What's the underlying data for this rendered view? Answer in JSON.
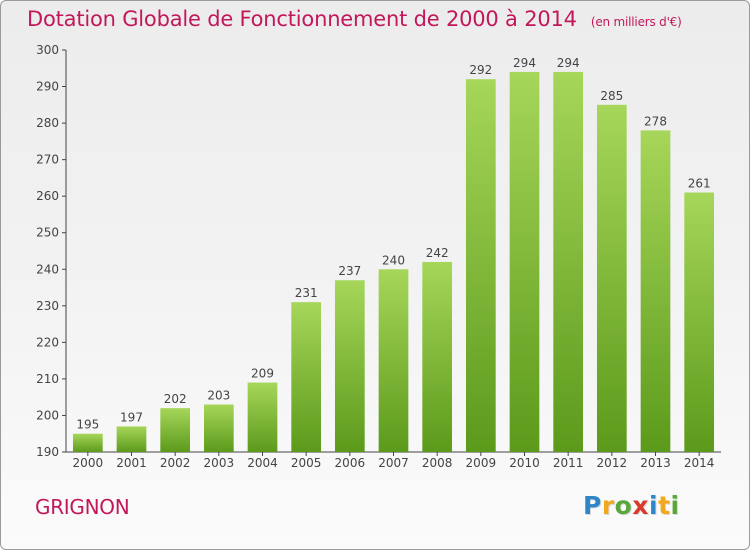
{
  "title": {
    "main": "Dotation Globale de Fonctionnement de 2000 à 2014",
    "unit": "(en milliers d'€)"
  },
  "place": "GRIGNON",
  "logo": {
    "letters": [
      "P",
      "r",
      "o",
      "x",
      "i",
      "t",
      "i"
    ],
    "colors": [
      "#2e86c9",
      "#f2a81d",
      "#5aa83c",
      "#d93a2b",
      "#2e86c9",
      "#f2a81d",
      "#5aa83c"
    ]
  },
  "colors": {
    "bar_top": "#a6d65a",
    "bar_bottom": "#5c9a1b",
    "title": "#c2185b"
  },
  "chart_data": {
    "type": "bar",
    "categories": [
      "2000",
      "2001",
      "2002",
      "2003",
      "2004",
      "2005",
      "2006",
      "2007",
      "2008",
      "2009",
      "2010",
      "2011",
      "2012",
      "2013",
      "2014"
    ],
    "values": [
      195,
      197,
      202,
      203,
      209,
      231,
      237,
      240,
      242,
      292,
      294,
      294,
      285,
      278,
      261
    ],
    "ylim": [
      190,
      300
    ],
    "yticks": [
      190,
      200,
      210,
      220,
      230,
      240,
      250,
      260,
      270,
      280,
      290,
      300
    ],
    "grid": false,
    "data_labels": true
  }
}
